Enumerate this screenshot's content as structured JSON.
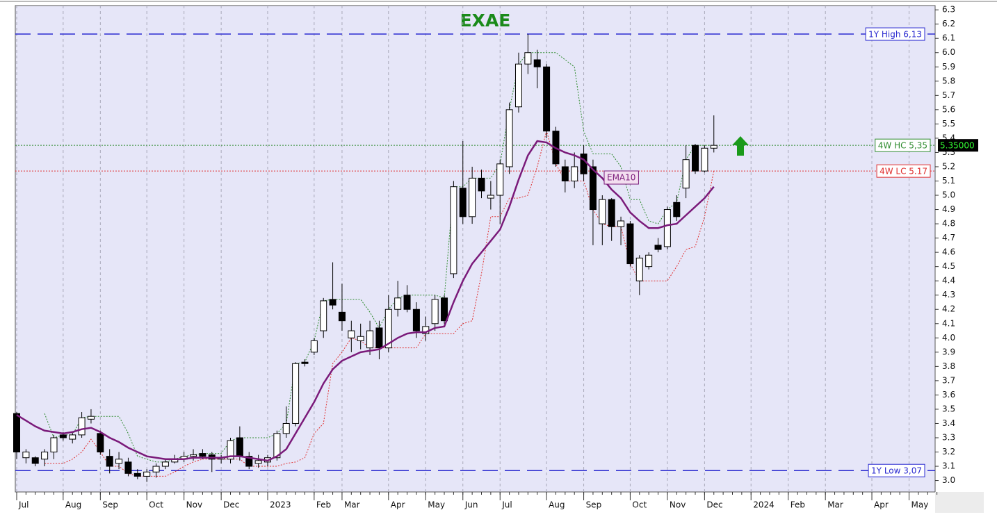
{
  "chart_data": {
    "type": "candlestick",
    "title": "EXAE",
    "title_color": "#1a8a1a",
    "background": "#e6e6f8",
    "grid": true,
    "categories": [
      "Jul",
      null,
      null,
      null,
      null,
      "Aug",
      null,
      null,
      null,
      "Sep",
      null,
      null,
      null,
      null,
      "Oct",
      null,
      null,
      null,
      "Nov",
      null,
      null,
      null,
      "Dec",
      null,
      null,
      null,
      null,
      "2023",
      null,
      null,
      null,
      null,
      "Feb",
      null,
      null,
      "Mar",
      null,
      null,
      null,
      null,
      "Apr",
      null,
      null,
      null,
      "May",
      null,
      null,
      null,
      "Jun",
      null,
      null,
      null,
      "Jul",
      null,
      null,
      null,
      null,
      "Aug",
      null,
      null,
      null,
      "Sep",
      null,
      null,
      null,
      null,
      "Oct",
      null,
      null,
      null,
      "Nov",
      null,
      null,
      null,
      "Dec",
      null,
      null,
      null,
      null,
      "2024",
      null,
      null,
      null,
      "Feb",
      null,
      null,
      null,
      "Mar",
      null,
      null,
      null,
      null,
      "Apr",
      null,
      null,
      null,
      "May",
      null,
      null,
      null
    ],
    "ylim": [
      2.92,
      6.33
    ],
    "yticks": [
      {
        "value": 3,
        "label": "3.0"
      },
      3.1,
      3.2,
      3.3,
      3.4,
      3.5,
      3.6,
      3.7,
      3.8,
      3.9,
      {
        "value": 4,
        "label": "4.0"
      },
      4.1,
      4.2,
      4.3,
      4.4,
      4.5,
      4.6,
      4.7,
      4.8,
      4.9,
      {
        "value": 5,
        "label": "5.0"
      },
      5.1,
      5.2,
      5.3,
      5.4,
      5.5,
      5.6,
      5.7,
      5.8,
      5.9,
      {
        "value": 6,
        "label": "6.0"
      },
      6.1,
      6.2,
      6.3
    ],
    "candles": {
      "up_color": "#ffffff",
      "down_color": "#000000",
      "open": [
        3.47,
        3.16,
        3.16,
        3.15,
        3.2,
        3.32,
        3.29,
        3.32,
        3.43,
        3.33,
        3.17,
        3.12,
        3.13,
        3.05,
        3.03,
        3.06,
        3.1,
        3.13,
        3.15,
        3.17,
        3.19,
        3.18,
        3.15,
        3.15,
        3.3,
        3.17,
        3.12,
        3.13,
        3.16,
        3.33,
        3.4,
        3.83,
        3.9,
        4.05,
        4.27,
        4.18,
        4.0,
        3.98,
        3.93,
        4.07,
        3.93,
        4.2,
        4.3,
        4.2,
        4.03,
        4.1,
        4.28,
        4.45,
        5.05,
        4.85,
        5.12,
        4.98,
        5.0,
        5.2,
        5.62,
        5.92,
        5.95,
        5.9,
        5.45,
        5.2,
        5.1,
        5.29,
        5.2,
        4.8,
        4.97,
        4.78,
        4.8,
        4.4,
        4.5,
        4.65,
        4.64,
        4.95,
        5.05,
        5.35,
        5.17,
        5.33,
        null,
        null,
        null,
        null,
        null,
        null,
        null,
        null,
        null,
        null,
        null,
        null,
        null,
        null,
        null,
        null,
        null,
        null,
        null,
        null,
        null,
        null,
        null,
        null
      ],
      "high": [
        3.48,
        3.22,
        3.17,
        3.22,
        3.32,
        3.34,
        3.34,
        3.48,
        3.5,
        3.35,
        3.22,
        3.2,
        3.16,
        3.08,
        3.08,
        3.12,
        3.15,
        3.18,
        3.2,
        3.22,
        3.22,
        3.2,
        3.18,
        3.3,
        3.38,
        3.2,
        3.18,
        3.18,
        3.35,
        3.52,
        3.83,
        3.85,
        4.0,
        4.28,
        4.53,
        4.38,
        4.12,
        4.1,
        4.12,
        4.12,
        4.3,
        4.4,
        4.37,
        4.25,
        4.15,
        4.3,
        4.3,
        5.1,
        5.38,
        5.2,
        5.18,
        5.1,
        5.25,
        5.65,
        6.0,
        6.13,
        6.02,
        5.92,
        5.48,
        5.25,
        5.3,
        5.35,
        5.25,
        5.0,
        4.98,
        4.85,
        4.82,
        4.58,
        4.6,
        4.7,
        4.92,
        5.0,
        5.35,
        5.36,
        5.35,
        5.56,
        null,
        null,
        null,
        null,
        null,
        null,
        null,
        null,
        null,
        null,
        null,
        null,
        null,
        null,
        null,
        null,
        null,
        null,
        null,
        null,
        null,
        null,
        null,
        null
      ],
      "low": [
        3.15,
        3.12,
        3.1,
        3.1,
        3.15,
        3.28,
        3.26,
        3.3,
        3.4,
        3.18,
        3.05,
        3.08,
        3.03,
        3.01,
        2.99,
        3.02,
        3.08,
        3.12,
        3.13,
        3.14,
        3.15,
        3.06,
        3.12,
        3.12,
        3.14,
        3.08,
        3.09,
        3.1,
        3.14,
        3.3,
        3.38,
        3.8,
        3.88,
        4.0,
        4.2,
        4.05,
        3.9,
        3.92,
        3.88,
        3.85,
        3.9,
        4.15,
        4.18,
        4.0,
        3.98,
        4.05,
        4.1,
        4.42,
        4.8,
        4.8,
        4.98,
        4.9,
        4.8,
        5.15,
        5.58,
        5.85,
        5.75,
        5.4,
        5.2,
        5.02,
        5.05,
        5.1,
        4.65,
        4.65,
        4.68,
        4.65,
        4.5,
        4.3,
        4.48,
        4.6,
        4.62,
        4.82,
        4.98,
        5.15,
        5.16,
        5.3,
        null,
        null,
        null,
        null,
        null,
        null,
        null,
        null,
        null,
        null,
        null,
        null,
        null,
        null,
        null,
        null,
        null,
        null,
        null,
        null,
        null,
        null,
        null,
        null
      ],
      "close": [
        3.2,
        3.2,
        3.12,
        3.2,
        3.3,
        3.3,
        3.32,
        3.44,
        3.45,
        3.2,
        3.1,
        3.15,
        3.05,
        3.03,
        3.06,
        3.1,
        3.13,
        3.15,
        3.17,
        3.18,
        3.17,
        3.15,
        3.16,
        3.28,
        3.17,
        3.1,
        3.14,
        3.16,
        3.33,
        3.4,
        3.82,
        3.82,
        3.98,
        4.26,
        4.23,
        4.12,
        4.05,
        4.01,
        4.05,
        3.93,
        4.2,
        4.28,
        4.2,
        4.05,
        4.08,
        4.27,
        4.12,
        5.06,
        4.85,
        5.12,
        5.03,
        5.0,
        5.22,
        5.6,
        5.92,
        6.0,
        5.9,
        5.45,
        5.22,
        5.1,
        5.2,
        5.15,
        4.9,
        4.97,
        4.78,
        4.82,
        4.52,
        4.56,
        4.58,
        4.62,
        4.9,
        4.85,
        5.25,
        5.17,
        5.33,
        5.35,
        null,
        null,
        null,
        null,
        null,
        null,
        null,
        null,
        null,
        null,
        null,
        null,
        null,
        null,
        null,
        null,
        null,
        null,
        null,
        null,
        null,
        null,
        null,
        null
      ]
    },
    "series": [
      {
        "name": "EMA10",
        "color": "#7a1a7a",
        "style": "solid",
        "values": [
          3.46,
          3.42,
          3.38,
          3.35,
          3.34,
          3.33,
          3.34,
          3.36,
          3.37,
          3.34,
          3.3,
          3.27,
          3.23,
          3.2,
          3.17,
          3.16,
          3.15,
          3.15,
          3.15,
          3.16,
          3.16,
          3.16,
          3.16,
          3.17,
          3.17,
          3.16,
          3.15,
          3.14,
          3.17,
          3.22,
          3.33,
          3.44,
          3.55,
          3.68,
          3.78,
          3.84,
          3.87,
          3.9,
          3.91,
          3.92,
          3.96,
          4.0,
          4.03,
          4.04,
          4.04,
          4.07,
          4.08,
          4.25,
          4.4,
          4.52,
          4.6,
          4.68,
          4.76,
          4.92,
          5.11,
          5.28,
          5.38,
          5.37,
          5.33,
          5.3,
          5.28,
          5.25,
          5.18,
          5.12,
          5.04,
          4.98,
          4.88,
          4.82,
          4.77,
          4.77,
          4.79,
          4.8,
          4.86,
          4.92,
          4.98,
          5.06,
          null,
          null,
          null,
          null,
          null,
          null,
          null,
          null,
          null,
          null,
          null,
          null,
          null,
          null,
          null,
          null,
          null,
          null,
          null,
          null,
          null,
          null,
          null,
          null
        ]
      },
      {
        "color": "#2e8b2e",
        "style": "dotted",
        "values": [
          null,
          null,
          null,
          3.47,
          3.3,
          3.32,
          3.32,
          3.44,
          3.45,
          3.45,
          3.45,
          3.45,
          3.33,
          3.17,
          3.15,
          3.13,
          3.13,
          3.15,
          3.17,
          3.18,
          3.19,
          3.19,
          3.19,
          3.28,
          3.3,
          3.3,
          3.3,
          3.3,
          3.33,
          3.4,
          3.82,
          3.83,
          3.98,
          4.26,
          4.27,
          4.27,
          4.27,
          4.27,
          4.18,
          4.07,
          4.2,
          4.28,
          4.3,
          4.3,
          4.3,
          4.3,
          4.28,
          5.06,
          5.06,
          5.12,
          5.12,
          5.12,
          5.22,
          5.6,
          5.92,
          6.0,
          6.0,
          6.0,
          6.0,
          5.95,
          5.9,
          5.45,
          5.29,
          5.29,
          5.29,
          5.2,
          4.97,
          4.97,
          4.82,
          4.8,
          4.9,
          4.95,
          5.25,
          5.35,
          5.35,
          5.35,
          null,
          null,
          null,
          null,
          null,
          null,
          null,
          null,
          null,
          null,
          null,
          null,
          null,
          null,
          null,
          null,
          null,
          null,
          null,
          null,
          null,
          null,
          null,
          null
        ]
      },
      {
        "color": "#e03030",
        "style": "dotted",
        "values": [
          null,
          null,
          null,
          3.12,
          3.12,
          3.12,
          3.15,
          3.2,
          3.29,
          3.2,
          3.1,
          3.1,
          3.05,
          3.03,
          3.03,
          3.03,
          3.03,
          3.06,
          3.1,
          3.13,
          3.15,
          3.15,
          3.15,
          3.15,
          3.15,
          3.1,
          3.1,
          3.1,
          3.1,
          3.12,
          3.13,
          3.16,
          3.33,
          3.4,
          3.82,
          3.9,
          4.0,
          3.98,
          3.93,
          3.93,
          3.93,
          3.93,
          3.93,
          3.93,
          4.03,
          4.03,
          4.03,
          4.03,
          4.1,
          4.12,
          4.45,
          4.85,
          4.85,
          4.98,
          4.98,
          5.0,
          5.2,
          5.45,
          5.22,
          5.1,
          5.1,
          5.1,
          4.9,
          4.8,
          4.78,
          4.78,
          4.52,
          4.4,
          4.4,
          4.4,
          4.4,
          4.5,
          4.62,
          4.64,
          4.85,
          5.17,
          null,
          null,
          null,
          null,
          null,
          null,
          null,
          null,
          null,
          null,
          null,
          null,
          null,
          null,
          null,
          null,
          null,
          null,
          null,
          null,
          null,
          null,
          null,
          null
        ]
      }
    ],
    "reference_lines": [
      {
        "label": "1Y High 6,13",
        "value": 6.13,
        "color": "#2a2ad0",
        "style": "dashed"
      },
      {
        "label": "4W HC 5,35",
        "value": 5.35,
        "color": "#2e8b2e",
        "style": "dotted"
      },
      {
        "label": "4W LC 5.17",
        "value": 5.17,
        "color": "#e03030",
        "style": "dotted"
      },
      {
        "label": "1Y Low 3,07",
        "value": 3.07,
        "color": "#2a2ad0",
        "style": "dashed"
      }
    ],
    "last_price": {
      "value": 5.35,
      "label": "5.35000"
    }
  }
}
